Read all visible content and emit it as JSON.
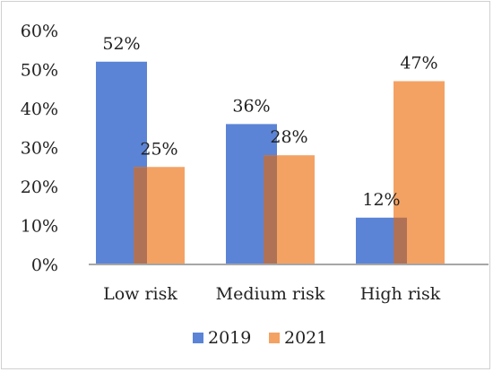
{
  "chart_data": {
    "type": "bar",
    "categories": [
      "Low risk",
      "Medium risk",
      "High risk"
    ],
    "series": [
      {
        "name": "2019",
        "values": [
          52,
          36,
          12
        ],
        "color": "#5b84d6",
        "labels": [
          "52%",
          "36%",
          "12%"
        ]
      },
      {
        "name": "2021",
        "values": [
          25,
          28,
          47
        ],
        "color": "#f4a264",
        "labels": [
          "25%",
          "28%",
          "47%"
        ]
      }
    ],
    "y_ticks": [
      "0%",
      "10%",
      "20%",
      "30%",
      "40%",
      "50%",
      "60%"
    ],
    "ylim": [
      0,
      60
    ],
    "y_tick_step": 10,
    "legend": "bottom",
    "overlap_color": "#b07257",
    "axis_color": "#a6a6a6",
    "grid": false
  }
}
